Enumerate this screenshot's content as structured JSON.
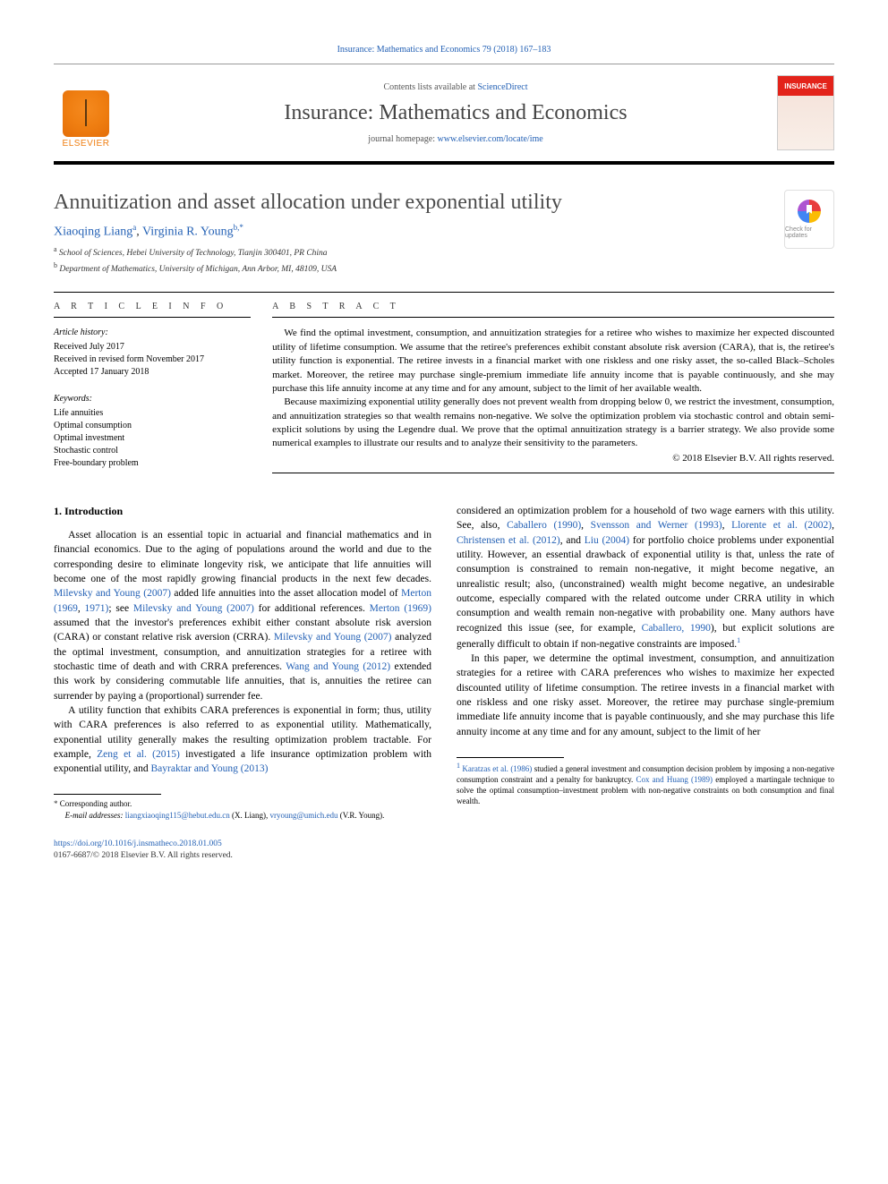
{
  "citation": "Insurance: Mathematics and Economics 79 (2018) 167–183",
  "header": {
    "contents_prefix": "Contents lists available at ",
    "contents_link": "ScienceDirect",
    "journal": "Insurance: Mathematics and Economics",
    "homepage_prefix": "journal homepage: ",
    "homepage_url": "www.elsevier.com/locate/ime",
    "publisher": "ELSEVIER",
    "cover_label": "INSURANCE"
  },
  "article": {
    "title": "Annuitization and asset allocation under exponential utility",
    "authors_html": "Xiaoqing Liang",
    "author1": "Xiaoqing Liang",
    "author1_sup": "a",
    "author2": "Virginia R. Young",
    "author2_sup": "b,*",
    "affiliations": {
      "a": "School of Sciences, Hebei University of Technology, Tianjin 300401, PR China",
      "b": "Department of Mathematics, University of Michigan, Ann Arbor, MI, 48109, USA"
    },
    "check_label": "Check for updates"
  },
  "info_head": "a r t i c l e   i n f o",
  "abs_head": "a b s t r a c t",
  "history": {
    "h": "Article history:",
    "r1": "Received July 2017",
    "r2": "Received in revised form November 2017",
    "r3": "Accepted 17 January 2018"
  },
  "keywords": {
    "h": "Keywords:",
    "items": [
      "Life annuities",
      "Optimal consumption",
      "Optimal investment",
      "Stochastic control",
      "Free-boundary problem"
    ]
  },
  "abstract": {
    "p1": "We find the optimal investment, consumption, and annuitization strategies for a retiree who wishes to maximize her expected discounted utility of lifetime consumption. We assume that the retiree's preferences exhibit constant absolute risk aversion (CARA), that is, the retiree's utility function is exponential. The retiree invests in a financial market with one riskless and one risky asset, the so-called Black–Scholes market. Moreover, the retiree may purchase single-premium immediate life annuity income that is payable continuously, and she may purchase this life annuity income at any time and for any amount, subject to the limit of her available wealth.",
    "p2": "Because maximizing exponential utility generally does not prevent wealth from dropping below 0, we restrict the investment, consumption, and annuitization strategies so that wealth remains non-negative. We solve the optimization problem via stochastic control and obtain semi-explicit solutions by using the Legendre dual. We prove that the optimal annuitization strategy is a barrier strategy. We also provide some numerical examples to illustrate our results and to analyze their sensitivity to the parameters.",
    "copyright": "© 2018 Elsevier B.V. All rights reserved."
  },
  "section1_head": "1. Introduction",
  "col_left": {
    "p1a": "Asset allocation is an essential topic in actuarial and financial mathematics and in financial economics. Due to the aging of populations around the world and due to the corresponding desire to eliminate longevity risk, we anticipate that life annuities will become one of the most rapidly growing financial products in the next few decades. ",
    "l1": "Milevsky and Young (2007)",
    "p1b": " added life annuities into the asset allocation model of ",
    "l2": "Merton (1969",
    "l2b": "1971)",
    "p1c": "; see ",
    "l3": "Milevsky and Young (2007)",
    "p1d": " for additional references. ",
    "l4": "Merton (1969)",
    "p1e": " assumed that the investor's preferences exhibit either constant absolute risk aversion (CARA) or constant relative risk aversion (CRRA). ",
    "l5": "Milevsky and Young (2007)",
    "p1f": " analyzed the optimal investment, consumption, and annuitization strategies for a retiree with stochastic time of death and with CRRA preferences. ",
    "l6": "Wang and Young (2012)",
    "p1g": " extended this work by considering commutable life annuities, that is, annuities the retiree can surrender by paying a (proportional) surrender fee.",
    "p2a": "A utility function that exhibits CARA preferences is exponential in form; thus, utility with CARA preferences is also referred to as exponential utility. Mathematically, exponential utility generally makes the resulting optimization problem tractable. For example, ",
    "l7": "Zeng et al. (2015)",
    "p2b": " investigated a life insurance optimization problem with exponential utility, and ",
    "l8": "Bayraktar and Young (2013)"
  },
  "col_right": {
    "p1a": "considered an optimization problem for a household of two wage earners with this utility. See, also, ",
    "l1": "Caballero (1990)",
    "l2": "Svensson and Werner (1993)",
    "l3": "Llorente et al. (2002)",
    "l4": "Christensen et al. (2012)",
    "l5": "Liu (2004)",
    "p1b": " for portfolio choice problems under exponential utility. However, an essential drawback of exponential utility is that, unless the rate of consumption is constrained to remain non-negative, it might become negative, an unrealistic result; also, (unconstrained) wealth might become negative, an undesirable outcome, especially compared with the related outcome under CRRA utility in which consumption and wealth remain non-negative with probability one. Many authors have recognized this issue (see, for example, ",
    "l6": "Caballero, 1990",
    "p1c": "), but explicit solutions are generally difficult to obtain if non-negative constraints are imposed.",
    "sup1": "1",
    "p2a": "In this paper, we determine the optimal investment, consumption, and annuitization strategies for a retiree with CARA preferences who wishes to maximize her expected discounted utility of lifetime consumption. The retiree invests in a financial market with one riskless and one risky asset. Moreover, the retiree may purchase single-premium immediate life annuity income that is payable continuously, and she may purchase this life annuity income at any time and for any amount, subject to the limit of her"
  },
  "footnotes_left": {
    "star": "* Corresponding author.",
    "email_lead": "E-mail addresses: ",
    "e1": "liangxiaoqing115@hebut.edu.cn",
    "e1_who": " (X. Liang), ",
    "e2": "vryoung@umich.edu",
    "e2_who": " (V.R. Young)."
  },
  "footnotes_right": {
    "n1_num": "1",
    "n1a": " ",
    "l1": "Karatzas et al. (1986)",
    "n1b": " studied a general investment and consumption decision problem by imposing a non-negative consumption constraint and a penalty for bankruptcy. ",
    "l2": "Cox and Huang (1989)",
    "n1c": " employed a martingale technique to solve the optimal consumption–investment problem with non-negative constraints on both consumption and final wealth."
  },
  "doi": {
    "url": "https://doi.org/10.1016/j.insmatheco.2018.01.005",
    "line2": "0167-6687/© 2018 Elsevier B.V. All rights reserved."
  },
  "colors": {
    "link": "#2461b5",
    "publisher_orange": "#ef7e11",
    "cover_red": "#e3231a",
    "text": "#000000",
    "heading_grey": "#4c4c4c"
  },
  "typography": {
    "body_font": "Georgia, serif",
    "title_size_pt": 24,
    "journal_size_pt": 24,
    "body_size_pt": 11.5,
    "abstract_size_pt": 11,
    "footnote_size_pt": 9
  }
}
